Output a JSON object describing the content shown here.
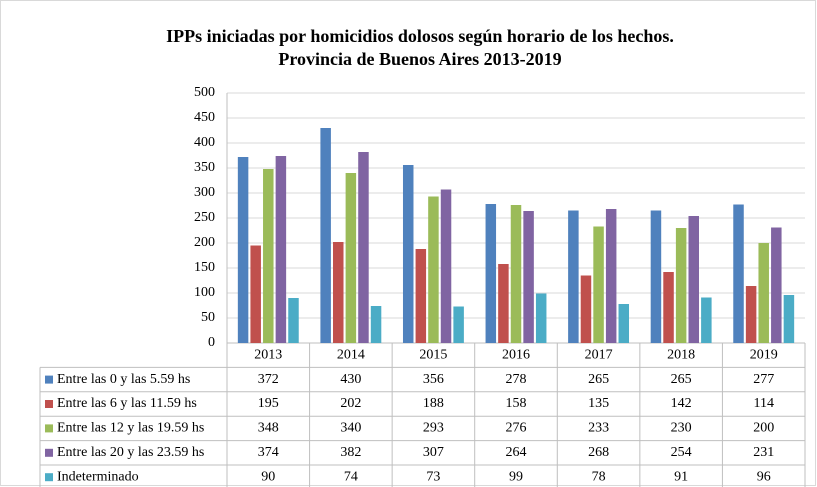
{
  "chart_data": {
    "type": "bar",
    "title": "IPPs iniciadas por homicidios  dolosos según horario  de los hechos.",
    "subtitle": "Provincia  de Buenos Aires 2013-2019",
    "categories": [
      "2013",
      "2014",
      "2015",
      "2016",
      "2017",
      "2018",
      "2019"
    ],
    "series": [
      {
        "name": "Entre las 0 y las 5.59 hs",
        "color": "#4f81bd",
        "values": [
          372,
          430,
          356,
          278,
          265,
          265,
          277
        ]
      },
      {
        "name": "Entre las 6 y las 11.59 hs",
        "color": "#c0504d",
        "values": [
          195,
          202,
          188,
          158,
          135,
          142,
          114
        ]
      },
      {
        "name": "Entre las 12 y las 19.59 hs",
        "color": "#9bbb59",
        "values": [
          348,
          340,
          293,
          276,
          233,
          230,
          200
        ]
      },
      {
        "name": "Entre las 20 y las 23.59 hs",
        "color": "#8064a2",
        "values": [
          374,
          382,
          307,
          264,
          268,
          254,
          231
        ]
      },
      {
        "name": "Indeterminado",
        "color": "#4bacc6",
        "values": [
          90,
          74,
          73,
          99,
          78,
          91,
          96
        ]
      }
    ],
    "ylim": [
      0,
      500
    ],
    "yticks": [
      0,
      50,
      100,
      150,
      200,
      250,
      300,
      350,
      400,
      450,
      500
    ],
    "grid": true
  }
}
